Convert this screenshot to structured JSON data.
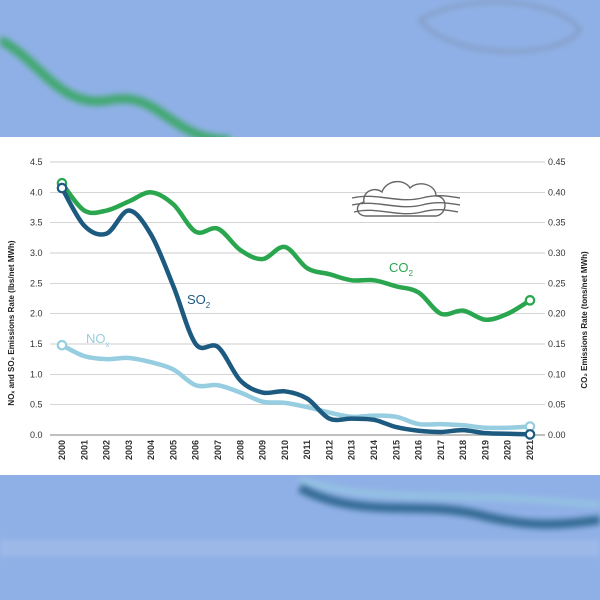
{
  "colors": {
    "background": "#8fb0e6",
    "card": "#ffffff",
    "co2": "#2aa64f",
    "so2": "#1d5a80",
    "nox": "#97cde0",
    "grid": "#bcbcbc"
  },
  "chart_data": {
    "type": "line",
    "title": "",
    "ylabel_left": "NOₓ and SO₂ Emissions Rate (lbs/net MWh)",
    "ylabel_right": "CO₂ Emissions Rate (tons/net MWh)",
    "ylim_left": [
      0,
      4.5
    ],
    "ylim_right": [
      0,
      0.45
    ],
    "yticks_left": [
      "0.0",
      "0.5",
      "1.0",
      "1.5",
      "2.0",
      "2.5",
      "3.0",
      "3.5",
      "4.0",
      "4.5"
    ],
    "yticks_right": [
      "0.00",
      "0.05",
      "0.10",
      "0.15",
      "0.20",
      "0.25",
      "0.30",
      "0.35",
      "0.40",
      "0.45"
    ],
    "categories": [
      "2000",
      "2001",
      "2002",
      "2003",
      "2004",
      "2005",
      "2006",
      "2007",
      "2008",
      "2009",
      "2010",
      "2011",
      "2012",
      "2013",
      "2014",
      "2015",
      "2016",
      "2017",
      "2018",
      "2019",
      "2020",
      "2021"
    ],
    "grid": "horizontal",
    "legend": "inline labels",
    "series": [
      {
        "name": "CO₂",
        "label_main": "CO",
        "label_sub": "2",
        "axis": "right",
        "color": "#2aa64f",
        "values": [
          0.415,
          0.37,
          0.37,
          0.385,
          0.4,
          0.38,
          0.335,
          0.34,
          0.305,
          0.29,
          0.31,
          0.275,
          0.265,
          0.255,
          0.255,
          0.245,
          0.235,
          0.2,
          0.205,
          0.19,
          0.2,
          0.222
        ]
      },
      {
        "name": "SO₂",
        "label_main": "SO",
        "label_sub": "2",
        "axis": "left",
        "color": "#1d5a80",
        "values": [
          4.07,
          3.45,
          3.32,
          3.7,
          3.3,
          2.45,
          1.5,
          1.45,
          0.9,
          0.7,
          0.72,
          0.6,
          0.27,
          0.27,
          0.25,
          0.13,
          0.07,
          0.05,
          0.08,
          0.03,
          0.02,
          0.01
        ]
      },
      {
        "name": "NOₓ",
        "label_main": "NO",
        "label_sub": "x",
        "axis": "left",
        "color": "#97cde0",
        "values": [
          1.48,
          1.3,
          1.25,
          1.27,
          1.2,
          1.08,
          0.82,
          0.82,
          0.7,
          0.55,
          0.53,
          0.46,
          0.37,
          0.3,
          0.32,
          0.3,
          0.18,
          0.18,
          0.16,
          0.12,
          0.12,
          0.14
        ]
      }
    ],
    "icon": "cloud-icon"
  }
}
